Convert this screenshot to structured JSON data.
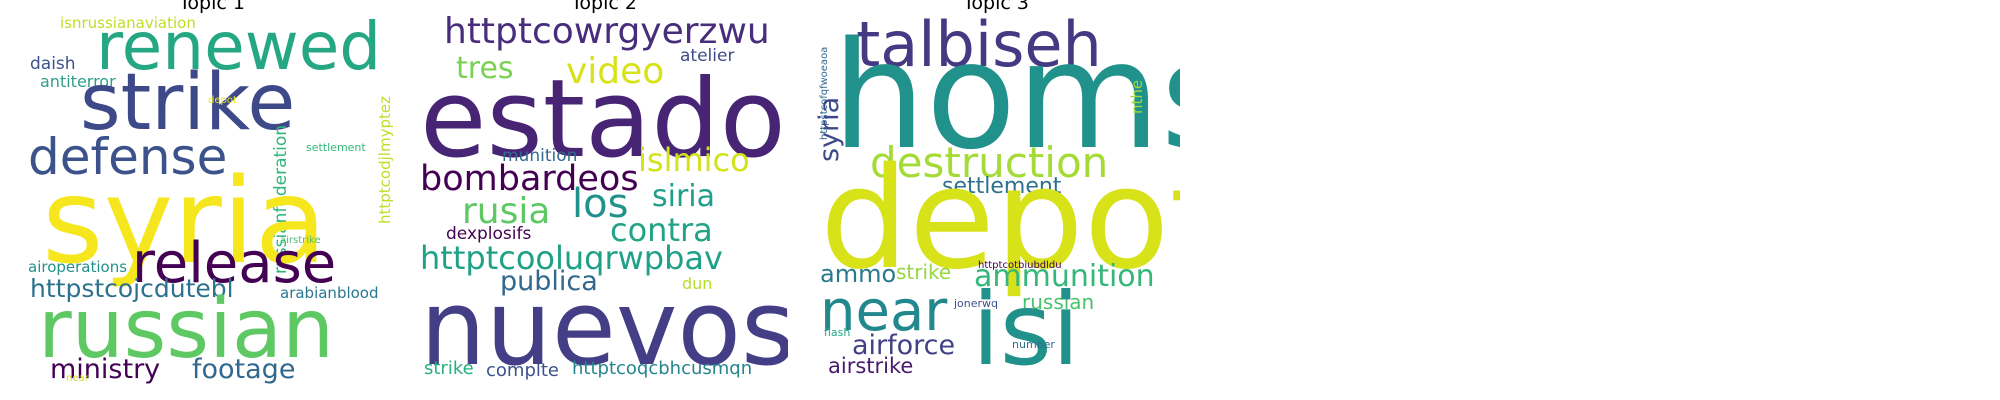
{
  "chart_data": [
    {
      "type": "wordcloud",
      "title": "Topic 1",
      "words": [
        {
          "text": "isnrussianaviation",
          "color": "#bddf26"
        },
        {
          "text": "renewed",
          "color": "#26a784"
        },
        {
          "text": "daish",
          "color": "#3b528b"
        },
        {
          "text": "antiterror",
          "color": "#2e9e89"
        },
        {
          "text": "strike",
          "color": "#3e4989"
        },
        {
          "text": "depot",
          "color": "#e8e419"
        },
        {
          "text": "defense",
          "color": "#3b528b"
        },
        {
          "text": "settlement",
          "color": "#35b779"
        },
        {
          "text": "russianfederation",
          "color": "#2fb47c"
        },
        {
          "text": "httptcodjlmyptez",
          "color": "#bddf26"
        },
        {
          "text": "syria",
          "color": "#f5e61d"
        },
        {
          "text": "airstrike",
          "color": "#4ac16d"
        },
        {
          "text": "release",
          "color": "#440154"
        },
        {
          "text": "airoperations",
          "color": "#21918c"
        },
        {
          "text": "httpstcojcdutebl",
          "color": "#2c728e"
        },
        {
          "text": "arabianblood",
          "color": "#2a788e"
        },
        {
          "text": "russian",
          "color": "#5ec962"
        },
        {
          "text": "ministry",
          "color": "#440154"
        },
        {
          "text": "footage",
          "color": "#31688e"
        },
        {
          "text": "near",
          "color": "#d2e21b"
        }
      ]
    },
    {
      "type": "wordcloud",
      "title": "Topic 2",
      "words": [
        {
          "text": "httptcowrgyerzwu",
          "color": "#472d7b"
        },
        {
          "text": "tres",
          "color": "#7ad151"
        },
        {
          "text": "video",
          "color": "#d8e219"
        },
        {
          "text": "atelier",
          "color": "#3e4a89"
        },
        {
          "text": "estado",
          "color": "#482475"
        },
        {
          "text": "munition",
          "color": "#31688e"
        },
        {
          "text": "islmico",
          "color": "#d2e21b"
        },
        {
          "text": "bombardeos",
          "color": "#440154"
        },
        {
          "text": "siria",
          "color": "#1f9e89"
        },
        {
          "text": "rusia",
          "color": "#5ec962"
        },
        {
          "text": "los",
          "color": "#21918c"
        },
        {
          "text": "contra",
          "color": "#20a386"
        },
        {
          "text": "dexplosifs",
          "color": "#440154"
        },
        {
          "text": "httptcooluqrwpbav",
          "color": "#1fa187"
        },
        {
          "text": "publica",
          "color": "#31688e"
        },
        {
          "text": "dun",
          "color": "#b5de2b"
        },
        {
          "text": "nuevos",
          "color": "#433e85"
        },
        {
          "text": "strike",
          "color": "#29af7f"
        },
        {
          "text": "complte",
          "color": "#3b528b"
        },
        {
          "text": "httptcoqcbhcusmqn",
          "color": "#25858e"
        }
      ]
    },
    {
      "type": "wordcloud",
      "title": "Topic 3",
      "words": [
        {
          "text": "talbiseh",
          "color": "#443983"
        },
        {
          "text": "httpstcofqfwoeaoa",
          "color": "#31688e"
        },
        {
          "text": "syria",
          "color": "#3e4989"
        },
        {
          "text": "homs",
          "color": "#21918c"
        },
        {
          "text": "nthe",
          "color": "#a0da39"
        },
        {
          "text": "destruction",
          "color": "#a5db36"
        },
        {
          "text": "settlement",
          "color": "#2c728e"
        },
        {
          "text": "depot",
          "color": "#d8e219"
        },
        {
          "text": "ammo",
          "color": "#2a788e"
        },
        {
          "text": "strike",
          "color": "#95d840"
        },
        {
          "text": "ammunition",
          "color": "#35b779"
        },
        {
          "text": "httptcotbiubdldu",
          "color": "#440154"
        },
        {
          "text": "near",
          "color": "#23888e"
        },
        {
          "text": "jonerwq",
          "color": "#3b528b"
        },
        {
          "text": "russian",
          "color": "#4ac16d"
        },
        {
          "text": "isi",
          "color": "#21918c"
        },
        {
          "text": "flash",
          "color": "#22a884"
        },
        {
          "text": "airforce",
          "color": "#424086"
        },
        {
          "text": "number",
          "color": "#2d708e"
        },
        {
          "text": "airstrike",
          "color": "#481a6c"
        }
      ]
    }
  ]
}
